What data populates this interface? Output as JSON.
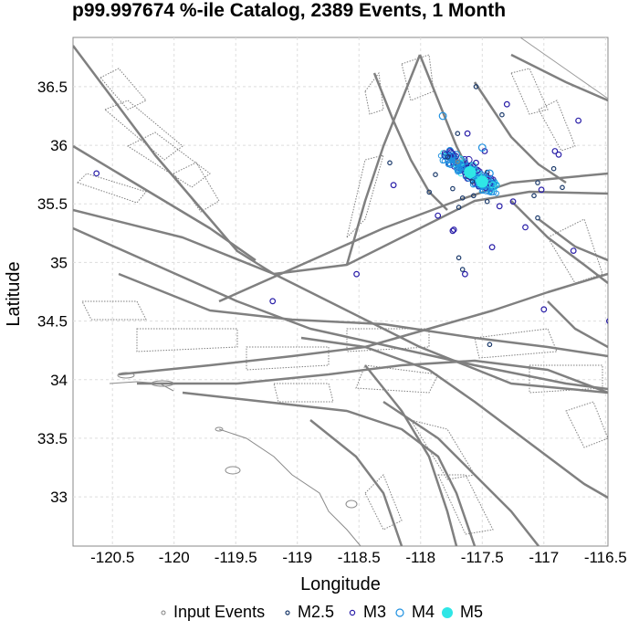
{
  "title": "p99.997674 %-ile Catalog, 2389 Events, 1 Month",
  "colors": {
    "input_events": "#808080",
    "m25": "#1b3a6b",
    "m3": "#2a1fa8",
    "m4": "#1e90e0",
    "m5": "#2fe6e6",
    "fault_fill": "#808080",
    "coast": "#8a8a8a",
    "grid": "#dddddd"
  },
  "chart_data": {
    "type": "scatter",
    "title": "p99.997674 %-ile Catalog, 2389 Events, 1 Month",
    "xlabel": "Longitude",
    "ylabel": "Latitude",
    "xlim": [
      -120.82,
      -116.48
    ],
    "ylim": [
      32.58,
      36.92
    ],
    "xticks": [
      "-120.5",
      "-120",
      "-119.5",
      "-119",
      "-118.5",
      "-118",
      "-117.5",
      "-117",
      "-116.5"
    ],
    "xtick_values": [
      -120.5,
      -120.0,
      -119.5,
      -119.0,
      -118.5,
      -118.0,
      -117.5,
      -117.0,
      -116.5
    ],
    "yticks": [
      "36.5",
      "36",
      "35.5",
      "35",
      "34.5",
      "34",
      "33.5",
      "33"
    ],
    "ytick_values": [
      36.5,
      36.0,
      35.5,
      35.0,
      34.5,
      34.0,
      33.5,
      33.0
    ],
    "grid": true,
    "legend_position": "bottom",
    "series": [
      {
        "name": "Input Events",
        "marker": "circle-small",
        "points": [
          [
            -117.7,
            35.86
          ],
          [
            -117.52,
            35.7
          ]
        ]
      },
      {
        "name": "M2.5",
        "marker": "circle-small",
        "points": [
          [
            -117.78,
            35.9
          ],
          [
            -117.62,
            35.74
          ],
          [
            -117.58,
            35.69
          ],
          [
            -117.46,
            35.77
          ],
          [
            -117.66,
            35.55
          ],
          [
            -117.69,
            35.47
          ],
          [
            -117.57,
            35.57
          ],
          [
            -117.46,
            35.52
          ],
          [
            -117.66,
            34.94
          ],
          [
            -117.69,
            35.04
          ],
          [
            -117.44,
            34.3
          ],
          [
            -117.08,
            35.57
          ],
          [
            -117.34,
            36.26
          ],
          [
            -117.05,
            35.68
          ],
          [
            -116.92,
            35.8
          ],
          [
            -116.85,
            35.64
          ],
          [
            -118.25,
            35.85
          ],
          [
            -117.7,
            36.1
          ],
          [
            -117.55,
            36.5
          ],
          [
            -117.05,
            35.38
          ],
          [
            -117.88,
            35.75
          ],
          [
            -117.93,
            35.6
          ],
          [
            -117.74,
            35.63
          ]
        ]
      },
      {
        "name": "M3",
        "marker": "circle",
        "points": [
          [
            -120.63,
            35.76
          ],
          [
            -118.52,
            34.9
          ],
          [
            -119.2,
            34.67
          ],
          [
            -117.64,
            34.9
          ],
          [
            -118.22,
            35.66
          ],
          [
            -117.86,
            35.4
          ],
          [
            -117.73,
            35.28
          ],
          [
            -117.42,
            35.13
          ],
          [
            -116.47,
            34.5
          ],
          [
            -116.76,
            35.1
          ],
          [
            -117.0,
            34.6
          ],
          [
            -117.15,
            35.3
          ],
          [
            -116.88,
            35.92
          ],
          [
            -116.72,
            36.21
          ],
          [
            -116.91,
            35.95
          ],
          [
            -117.74,
            35.27
          ],
          [
            -117.36,
            35.48
          ],
          [
            -117.25,
            35.52
          ],
          [
            -117.02,
            35.62
          ],
          [
            -117.55,
            35.85
          ],
          [
            -117.48,
            35.95
          ],
          [
            -117.62,
            36.1
          ],
          [
            -117.3,
            36.35
          ]
        ]
      },
      {
        "name": "M4",
        "marker": "circle",
        "points": [
          [
            -117.5,
            35.98
          ],
          [
            -117.82,
            36.25
          ],
          [
            -117.44,
            35.76
          ]
        ]
      },
      {
        "name": "M5",
        "marker": "disk",
        "points": [
          [
            -117.6,
            35.77
          ],
          [
            -117.5,
            35.69
          ]
        ]
      }
    ]
  },
  "legend": {
    "items": [
      "Input Events",
      "M2.5",
      "M3",
      "M4",
      "M5"
    ]
  }
}
